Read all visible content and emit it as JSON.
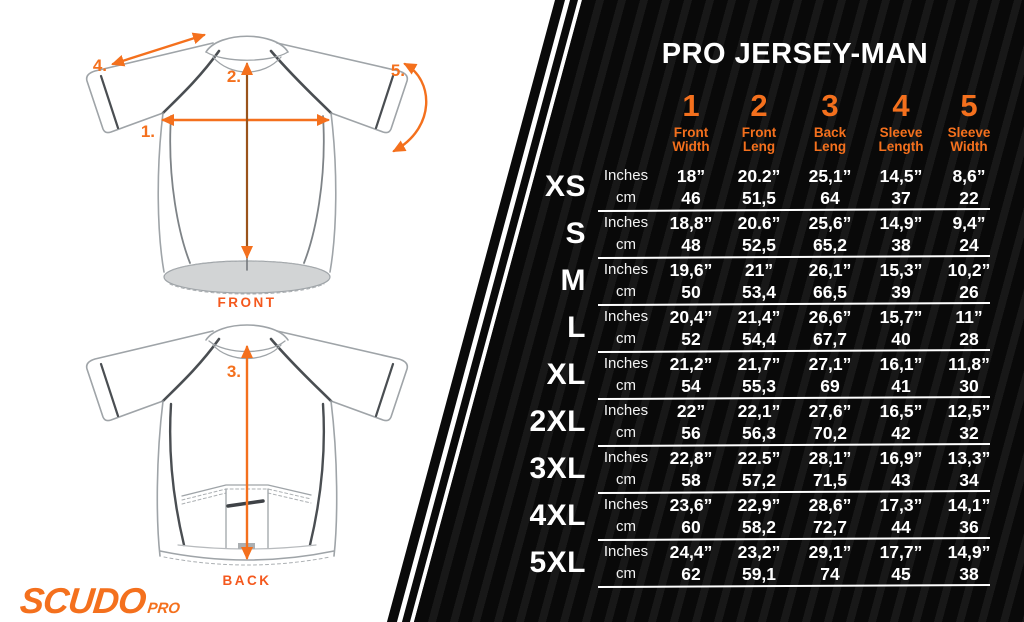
{
  "brand": {
    "name": "SCUDO",
    "suffix": "PRO"
  },
  "diagram": {
    "front": {
      "caption": "FRONT",
      "marker_width": "1.",
      "marker_front_length": "2.",
      "marker_shoulder": "4.",
      "marker_sleeve": "5."
    },
    "back": {
      "caption": "BACK",
      "marker_back_length": "3."
    }
  },
  "table": {
    "title": "PRO JERSEY-MAN",
    "unit_labels": [
      "Inches",
      "cm"
    ],
    "columns": [
      {
        "num": "1",
        "label_lines": [
          "Front",
          "Width"
        ]
      },
      {
        "num": "2",
        "label_lines": [
          "Front",
          "Leng"
        ]
      },
      {
        "num": "3",
        "label_lines": [
          "Back",
          "Leng"
        ]
      },
      {
        "num": "4",
        "label_lines": [
          "Sleeve",
          "Length"
        ]
      },
      {
        "num": "5",
        "label_lines": [
          "Sleeve",
          "Width"
        ]
      }
    ],
    "rows": [
      {
        "size": "XS",
        "inches": [
          "18”",
          "20.2”",
          "25,1”",
          "14,5”",
          "8,6”"
        ],
        "cm": [
          "46",
          "51,5",
          "64",
          "37",
          "22"
        ]
      },
      {
        "size": "S",
        "inches": [
          "18,8”",
          "20.6”",
          "25,6”",
          "14,9”",
          "9,4”"
        ],
        "cm": [
          "48",
          "52,5",
          "65,2",
          "38",
          "24"
        ]
      },
      {
        "size": "M",
        "inches": [
          "19,6”",
          "21”",
          "26,1”",
          "15,3”",
          "10,2”"
        ],
        "cm": [
          "50",
          "53,4",
          "66,5",
          "39",
          "26"
        ]
      },
      {
        "size": "L",
        "inches": [
          "20,4”",
          "21,4”",
          "26,6”",
          "15,7”",
          "11”"
        ],
        "cm": [
          "52",
          "54,4",
          "67,7",
          "40",
          "28"
        ]
      },
      {
        "size": "XL",
        "inches": [
          "21,2”",
          "21,7”",
          "27,1”",
          "16,1”",
          "11,8”"
        ],
        "cm": [
          "54",
          "55,3",
          "69",
          "41",
          "30"
        ]
      },
      {
        "size": "2XL",
        "inches": [
          "22”",
          "22,1”",
          "27,6”",
          "16,5”",
          "12,5”"
        ],
        "cm": [
          "56",
          "56,3",
          "70,2",
          "42",
          "32"
        ]
      },
      {
        "size": "3XL",
        "inches": [
          "22,8”",
          "22.5”",
          "28,1”",
          "16,9”",
          "13,3”"
        ],
        "cm": [
          "58",
          "57,2",
          "71,5",
          "43",
          "34"
        ]
      },
      {
        "size": "4XL",
        "inches": [
          "23,6”",
          "22,9”",
          "28,6”",
          "17,3”",
          "14,1”"
        ],
        "cm": [
          "60",
          "58,2",
          "72,7",
          "44",
          "36"
        ]
      },
      {
        "size": "5XL",
        "inches": [
          "24,4”",
          "23,2”",
          "29,1”",
          "17,7”",
          "14,9”"
        ],
        "cm": [
          "62",
          "59,1",
          "74",
          "45",
          "38"
        ]
      }
    ]
  },
  "colors": {
    "accent": "#F4701D",
    "panel_black": "#0A0A0A",
    "pinstripe": "#181818",
    "text_white": "#FFFFFF"
  }
}
